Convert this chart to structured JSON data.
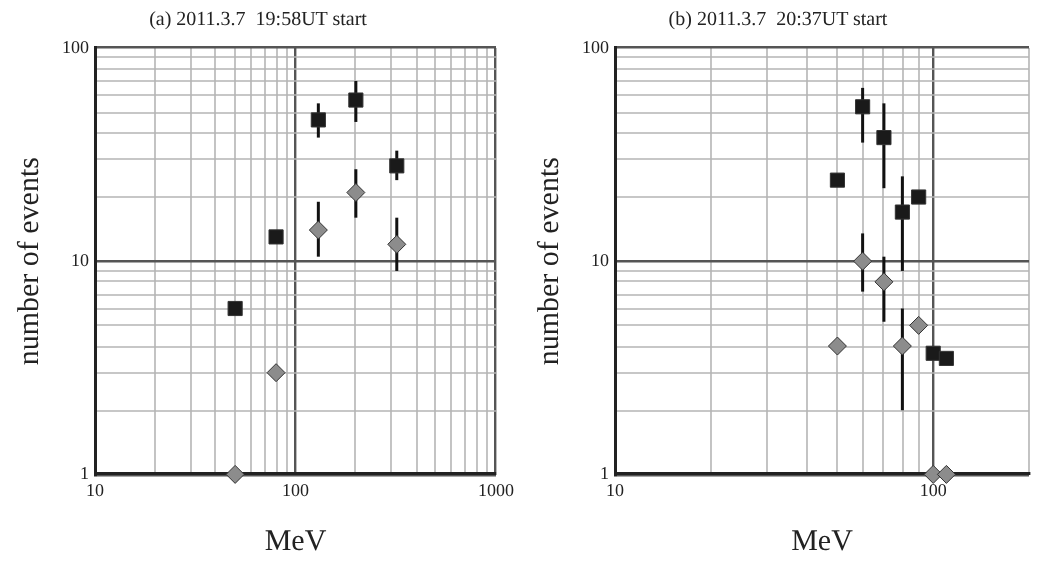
{
  "chart_data": [
    {
      "type": "scatter",
      "title": "(a) 2011.3.7  19:58UT start",
      "xlabel": "MeV",
      "ylabel": "number of events",
      "log": "xy",
      "grid": true,
      "legend": false,
      "xlim": [
        10,
        1000
      ],
      "ylim": [
        1,
        100
      ],
      "xticks": [
        10,
        {
          "value": 20,
          "label": null
        },
        {
          "value": 30,
          "label": null
        },
        {
          "value": 40,
          "label": null
        },
        {
          "value": 50,
          "label": null
        },
        {
          "value": 60,
          "label": null
        },
        {
          "value": 70,
          "label": null
        },
        {
          "value": 80,
          "label": null
        },
        {
          "value": 90,
          "label": null
        },
        100,
        {
          "value": 200,
          "label": null
        },
        {
          "value": 300,
          "label": null
        },
        {
          "value": 400,
          "label": null
        },
        {
          "value": 500,
          "label": null
        },
        {
          "value": 600,
          "label": null
        },
        {
          "value": 700,
          "label": null
        },
        {
          "value": 800,
          "label": null
        },
        {
          "value": 900,
          "label": null
        },
        1000
      ],
      "yticks": [
        1,
        {
          "value": 2,
          "label": null
        },
        {
          "value": 3,
          "label": null
        },
        {
          "value": 4,
          "label": null
        },
        {
          "value": 5,
          "label": null
        },
        {
          "value": 6,
          "label": null
        },
        {
          "value": 7,
          "label": null
        },
        {
          "value": 8,
          "label": null
        },
        {
          "value": 9,
          "label": null
        },
        10,
        {
          "value": 20,
          "label": null
        },
        {
          "value": 30,
          "label": null
        },
        {
          "value": 40,
          "label": null
        },
        {
          "value": 50,
          "label": null
        },
        {
          "value": 60,
          "label": null
        },
        {
          "value": 70,
          "label": null
        },
        {
          "value": 80,
          "label": null
        },
        {
          "value": 90,
          "label": null
        },
        100
      ],
      "series": [
        {
          "color": "#1a1a1a",
          "marker": "square",
          "x": [
            50,
            80,
            130,
            200,
            320
          ],
          "values": [
            6,
            13,
            46,
            57,
            28
          ],
          "errors": [
            null,
            null,
            [
              38,
              55
            ],
            [
              45,
              70
            ],
            [
              24,
              33
            ]
          ]
        },
        {
          "color": "#8c8c8c",
          "marker": "diamond",
          "x": [
            50,
            80,
            130,
            200,
            320
          ],
          "values": [
            1,
            3,
            14,
            21,
            12
          ],
          "errors": [
            null,
            null,
            [
              10.5,
              19
            ],
            [
              16,
              27
            ],
            [
              9,
              16
            ]
          ]
        }
      ]
    },
    {
      "type": "scatter",
      "title": "(b) 2011.3.7  20:37UT start",
      "xlabel": "MeV",
      "ylabel": "number of events",
      "log": "xy",
      "grid": true,
      "legend": false,
      "xlim": [
        10,
        200
      ],
      "ylim": [
        1,
        100
      ],
      "xticks": [
        10,
        {
          "value": 20,
          "label": null
        },
        {
          "value": 30,
          "label": null
        },
        {
          "value": 40,
          "label": null
        },
        {
          "value": 50,
          "label": null
        },
        {
          "value": 60,
          "label": null
        },
        {
          "value": 70,
          "label": null
        },
        {
          "value": 80,
          "label": null
        },
        {
          "value": 90,
          "label": null
        },
        100,
        {
          "value": 200,
          "label": null
        }
      ],
      "yticks": [
        1,
        {
          "value": 2,
          "label": null
        },
        {
          "value": 3,
          "label": null
        },
        {
          "value": 4,
          "label": null
        },
        {
          "value": 5,
          "label": null
        },
        {
          "value": 6,
          "label": null
        },
        {
          "value": 7,
          "label": null
        },
        {
          "value": 8,
          "label": null
        },
        {
          "value": 9,
          "label": null
        },
        10,
        {
          "value": 20,
          "label": null
        },
        {
          "value": 30,
          "label": null
        },
        {
          "value": 40,
          "label": null
        },
        {
          "value": 50,
          "label": null
        },
        {
          "value": 60,
          "label": null
        },
        {
          "value": 70,
          "label": null
        },
        {
          "value": 80,
          "label": null
        },
        {
          "value": 90,
          "label": null
        },
        100
      ],
      "series": [
        {
          "color": "#1a1a1a",
          "marker": "square",
          "x": [
            50,
            60,
            70,
            80,
            90,
            100,
            110
          ],
          "values": [
            24,
            53,
            38,
            17,
            20,
            3.7,
            3.5
          ],
          "errors": [
            null,
            [
              36,
              65
            ],
            [
              22,
              55
            ],
            [
              9,
              25
            ],
            null,
            null,
            null
          ]
        },
        {
          "color": "#8c8c8c",
          "marker": "diamond",
          "x": [
            50,
            60,
            70,
            80,
            90,
            100,
            110
          ],
          "values": [
            4,
            10,
            8,
            4,
            5,
            1,
            1
          ],
          "errors": [
            null,
            [
              7.2,
              13.5
            ],
            [
              5.2,
              10.5
            ],
            [
              2,
              6
            ],
            null,
            null,
            null
          ]
        }
      ]
    }
  ]
}
